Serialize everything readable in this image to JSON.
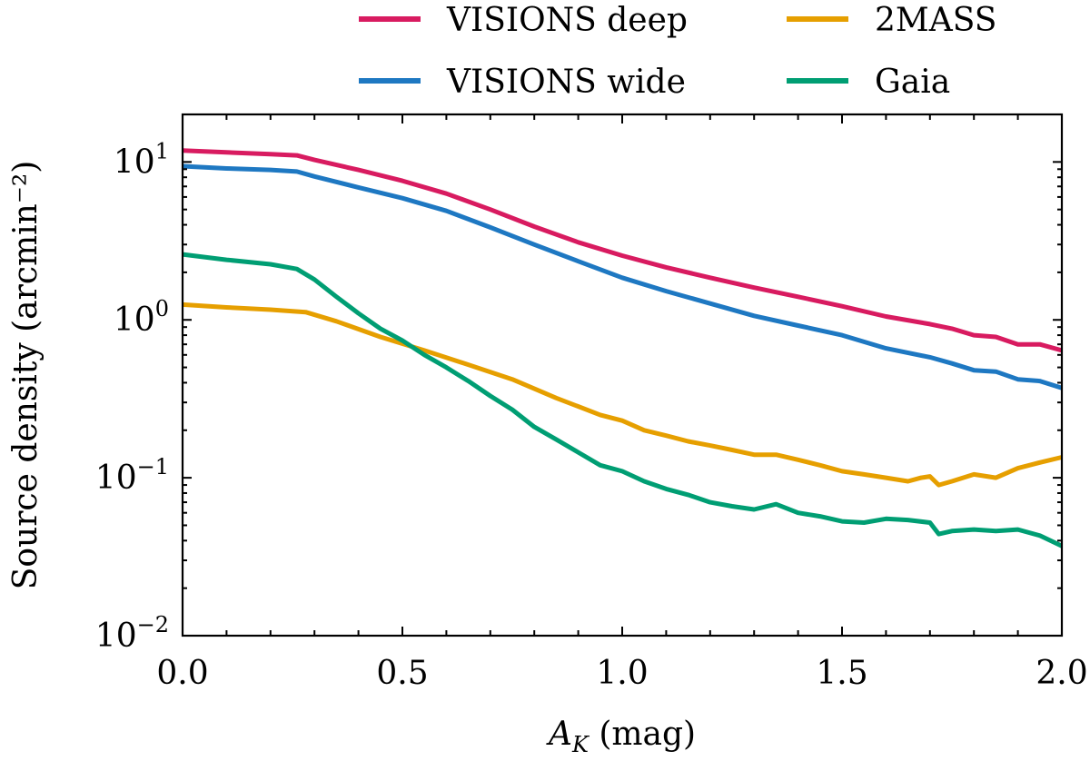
{
  "chart_data": {
    "type": "line",
    "title": "",
    "xlabel": "A_K (mag)",
    "xlabel_parts": {
      "main": "A",
      "sub": "K",
      "rest": " (mag)"
    },
    "ylabel": "Source density (arcmin⁻²)",
    "yscale": "log",
    "xlim": [
      0.0,
      2.0
    ],
    "ylim": [
      0.01,
      20
    ],
    "grid": false,
    "legend_position": "top",
    "x_ticks": [
      {
        "value": 0.0,
        "label": "0.0"
      },
      {
        "value": 0.5,
        "label": "0.5"
      },
      {
        "value": 1.0,
        "label": "1.0"
      },
      {
        "value": 1.5,
        "label": "1.5"
      },
      {
        "value": 2.0,
        "label": "2.0"
      }
    ],
    "y_ticks": [
      {
        "value": 0.01,
        "base": "10",
        "exp": "−2"
      },
      {
        "value": 0.1,
        "base": "10",
        "exp": "−1"
      },
      {
        "value": 1,
        "base": "10",
        "exp": "0"
      },
      {
        "value": 10,
        "base": "10",
        "exp": "1"
      }
    ],
    "series": [
      {
        "name": "VISIONS deep",
        "color": "#d81b60",
        "x": [
          0.0,
          0.1,
          0.2,
          0.26,
          0.3,
          0.4,
          0.5,
          0.6,
          0.7,
          0.8,
          0.9,
          1.0,
          1.1,
          1.2,
          1.3,
          1.4,
          1.5,
          1.6,
          1.7,
          1.75,
          1.8,
          1.85,
          1.9,
          1.95,
          2.0
        ],
        "values": [
          11.8,
          11.5,
          11.2,
          11.0,
          10.3,
          8.9,
          7.6,
          6.3,
          5.0,
          3.9,
          3.1,
          2.55,
          2.15,
          1.85,
          1.6,
          1.4,
          1.22,
          1.05,
          0.94,
          0.88,
          0.8,
          0.78,
          0.7,
          0.7,
          0.64
        ]
      },
      {
        "name": "VISIONS wide",
        "color": "#1e78c2",
        "x": [
          0.0,
          0.1,
          0.2,
          0.26,
          0.3,
          0.4,
          0.5,
          0.6,
          0.7,
          0.8,
          0.9,
          1.0,
          1.1,
          1.2,
          1.3,
          1.4,
          1.5,
          1.6,
          1.7,
          1.75,
          1.8,
          1.85,
          1.9,
          1.95,
          2.0
        ],
        "values": [
          9.4,
          9.1,
          8.9,
          8.7,
          8.1,
          6.9,
          5.9,
          4.9,
          3.85,
          3.0,
          2.35,
          1.85,
          1.52,
          1.27,
          1.06,
          0.92,
          0.8,
          0.66,
          0.58,
          0.53,
          0.48,
          0.47,
          0.42,
          0.41,
          0.37
        ]
      },
      {
        "name": "2MASS",
        "color": "#e69f00",
        "x": [
          0.0,
          0.1,
          0.2,
          0.28,
          0.35,
          0.45,
          0.55,
          0.65,
          0.75,
          0.85,
          0.95,
          1.0,
          1.05,
          1.1,
          1.15,
          1.2,
          1.25,
          1.3,
          1.35,
          1.4,
          1.45,
          1.5,
          1.55,
          1.6,
          1.65,
          1.68,
          1.7,
          1.72,
          1.75,
          1.8,
          1.85,
          1.9,
          1.95,
          2.0
        ],
        "values": [
          1.25,
          1.2,
          1.16,
          1.12,
          0.98,
          0.78,
          0.64,
          0.52,
          0.42,
          0.32,
          0.25,
          0.23,
          0.2,
          0.185,
          0.17,
          0.16,
          0.15,
          0.14,
          0.14,
          0.13,
          0.12,
          0.11,
          0.105,
          0.1,
          0.095,
          0.1,
          0.102,
          0.09,
          0.095,
          0.105,
          0.1,
          0.115,
          0.125,
          0.135
        ]
      },
      {
        "name": "Gaia",
        "color": "#009e73",
        "x": [
          0.0,
          0.1,
          0.2,
          0.26,
          0.3,
          0.35,
          0.4,
          0.45,
          0.5,
          0.55,
          0.6,
          0.65,
          0.7,
          0.75,
          0.8,
          0.85,
          0.9,
          0.95,
          1.0,
          1.05,
          1.1,
          1.15,
          1.2,
          1.25,
          1.3,
          1.35,
          1.4,
          1.45,
          1.5,
          1.55,
          1.6,
          1.65,
          1.7,
          1.72,
          1.75,
          1.8,
          1.85,
          1.9,
          1.95,
          2.0
        ],
        "values": [
          2.6,
          2.4,
          2.25,
          2.1,
          1.8,
          1.4,
          1.1,
          0.88,
          0.74,
          0.6,
          0.5,
          0.41,
          0.33,
          0.27,
          0.21,
          0.175,
          0.145,
          0.12,
          0.11,
          0.095,
          0.085,
          0.078,
          0.07,
          0.066,
          0.063,
          0.068,
          0.06,
          0.057,
          0.053,
          0.052,
          0.055,
          0.054,
          0.052,
          0.044,
          0.046,
          0.047,
          0.046,
          0.047,
          0.043,
          0.037
        ]
      }
    ]
  }
}
